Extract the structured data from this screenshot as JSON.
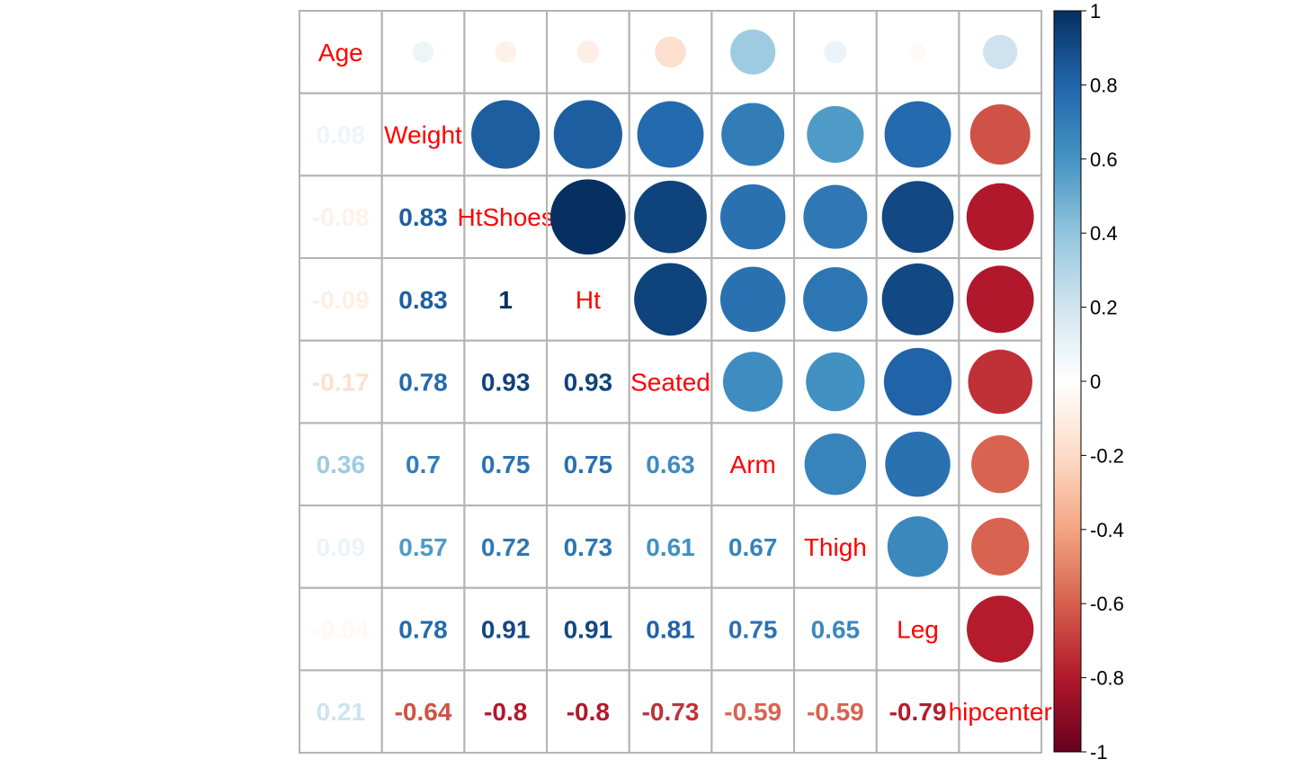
{
  "chart_data": {
    "type": "heatmap",
    "title": "",
    "variables": [
      "Age",
      "Weight",
      "HtShoes",
      "Ht",
      "Seated",
      "Arm",
      "Thigh",
      "Leg",
      "hipcenter"
    ],
    "matrix": [
      [
        1,
        0.08,
        -0.08,
        -0.09,
        -0.17,
        0.36,
        0.09,
        -0.04,
        0.21
      ],
      [
        0.08,
        1,
        0.83,
        0.83,
        0.78,
        0.7,
        0.57,
        0.78,
        -0.64
      ],
      [
        -0.08,
        0.83,
        1,
        1,
        0.93,
        0.75,
        0.72,
        0.91,
        -0.8
      ],
      [
        -0.09,
        0.83,
        1,
        1,
        0.93,
        0.75,
        0.73,
        0.91,
        -0.8
      ],
      [
        -0.17,
        0.78,
        0.93,
        0.93,
        1,
        0.63,
        0.61,
        0.81,
        -0.73
      ],
      [
        0.36,
        0.7,
        0.75,
        0.75,
        0.63,
        1,
        0.67,
        0.75,
        -0.59
      ],
      [
        0.09,
        0.57,
        0.72,
        0.73,
        0.61,
        0.67,
        1,
        0.65,
        -0.59
      ],
      [
        -0.04,
        0.78,
        0.91,
        0.91,
        0.81,
        0.75,
        0.65,
        1,
        -0.79
      ],
      [
        0.21,
        -0.64,
        -0.8,
        -0.8,
        -0.73,
        -0.59,
        -0.59,
        -0.79,
        1
      ]
    ],
    "upper_method": "circle",
    "lower_method": "number",
    "diagonal": "labels",
    "color_scale": {
      "range": [
        -1,
        1
      ],
      "ticks": [
        -1,
        -0.8,
        -0.6,
        -0.4,
        -0.2,
        0,
        0.2,
        0.4,
        0.6,
        0.8,
        1
      ],
      "tick_labels": [
        "-1",
        "-0.8",
        "-0.6",
        "-0.4",
        "-0.2",
        "0",
        "0.2",
        "0.4",
        "0.6",
        "0.8",
        "1"
      ],
      "stops": [
        "#67001f",
        "#b2182b",
        "#d6604d",
        "#f4a582",
        "#fddbc7",
        "#ffffff",
        "#d1e5f0",
        "#92c5de",
        "#4393c3",
        "#2166ac",
        "#053061"
      ],
      "legend_placement": "right"
    },
    "label_color": "#ff0000",
    "grid_color": "#b3b3b3"
  }
}
